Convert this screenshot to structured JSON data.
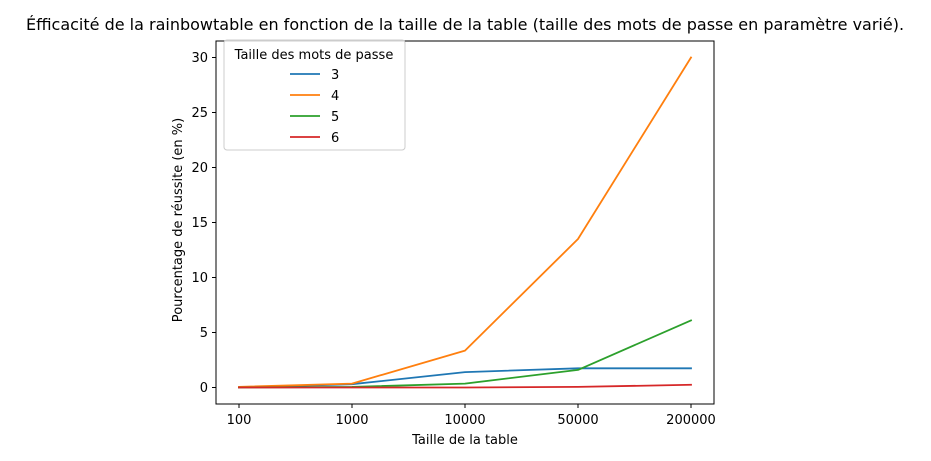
{
  "chart_data": {
    "type": "line",
    "title": "Éfficacité de la rainbowtable en fonction de la taille de la table (taille des mots de passe en paramètre varié).",
    "xlabel": "Taille de la table",
    "ylabel": "Pourcentage de réussite (en %)",
    "categories": [
      "100",
      "1000",
      "10000",
      "50000",
      "200000"
    ],
    "ylim": [
      -1.5,
      31.5
    ],
    "yticks": [
      0,
      5,
      10,
      15,
      20,
      25,
      30
    ],
    "grid": false,
    "legend": {
      "title": "Taille des mots de passe",
      "placement": "top-left"
    },
    "series": [
      {
        "name": "3",
        "color": "#1f77b4",
        "values": [
          0.0,
          0.3,
          1.4,
          1.75,
          1.75
        ]
      },
      {
        "name": "4",
        "color": "#ff7f0e",
        "values": [
          0.05,
          0.35,
          3.35,
          13.5,
          30.0
        ]
      },
      {
        "name": "5",
        "color": "#2ca02c",
        "values": [
          0.0,
          0.05,
          0.35,
          1.6,
          6.1
        ]
      },
      {
        "name": "6",
        "color": "#d62728",
        "values": [
          0.0,
          0.0,
          0.0,
          0.05,
          0.25
        ]
      }
    ]
  }
}
